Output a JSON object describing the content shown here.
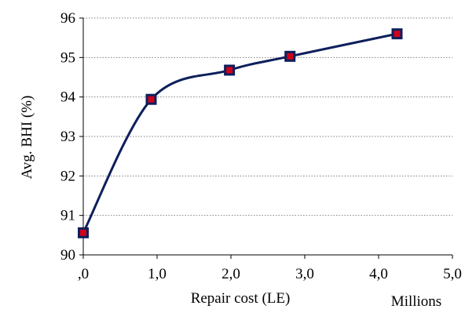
{
  "chart_data": {
    "type": "line",
    "title": "",
    "xlabel": "Repair cost (LE)",
    "ylabel": "Avg. BHI (%)",
    "x_unit_label": "Millions",
    "xlim": [
      0,
      5
    ],
    "ylim": [
      90,
      96
    ],
    "x_ticks": [
      0,
      1,
      2,
      3,
      4,
      5
    ],
    "x_tick_labels": [
      ",0",
      "1,0",
      "2,0",
      "3,0",
      "4,0",
      "5,0"
    ],
    "y_ticks": [
      90,
      91,
      92,
      93,
      94,
      95,
      96
    ],
    "y_tick_labels": [
      "90",
      "91",
      "92",
      "93",
      "94",
      "95",
      "96"
    ],
    "grid": {
      "horizontal": true,
      "vertical": false,
      "style": "dotted"
    },
    "legend": "none",
    "smooth": true,
    "series": [
      {
        "x": [
          0.0,
          0.92,
          1.98,
          2.8,
          4.25
        ],
        "y": [
          90.56,
          93.94,
          94.68,
          95.03,
          95.6
        ],
        "line_color": "#0d1f5c",
        "marker": "square",
        "marker_fill": "#d0021b",
        "marker_edge": "#0d1f5c"
      }
    ]
  }
}
